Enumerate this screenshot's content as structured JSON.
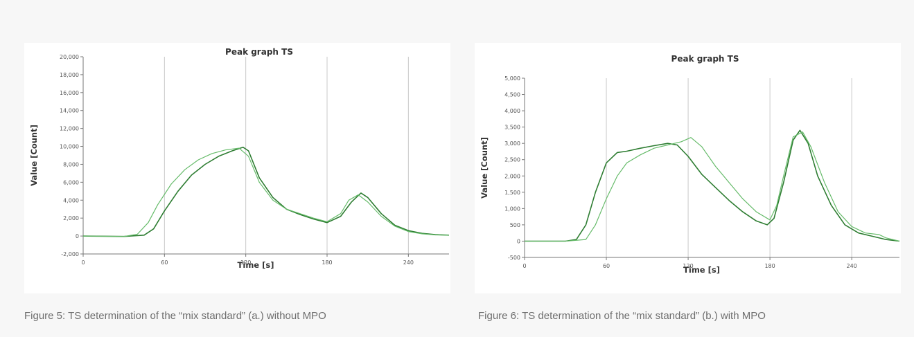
{
  "captions": [
    "Figure 5: TS determination of the “mix standard” (a.) without MPO",
    "Figure 6: TS determination of the “mix standard” (b.) with MPO"
  ],
  "colors": {
    "series_dark": "#2e7d32",
    "series_light": "#66bb6a",
    "grid": "#c8c8c8"
  },
  "chart_data": [
    {
      "type": "line",
      "title": "Peak graph TS",
      "xlabel": "Time [s]",
      "ylabel": "Value [Count]",
      "xlim": [
        0,
        270
      ],
      "ylim": [
        -2000,
        20000
      ],
      "xticks": [
        0,
        60,
        120,
        180,
        240
      ],
      "xtick_labels": [
        "0",
        "60",
        "120",
        "180",
        "240"
      ],
      "yticks": [
        -2000,
        0,
        2000,
        4000,
        6000,
        8000,
        10000,
        12000,
        14000,
        16000,
        18000,
        20000
      ],
      "ytick_labels": [
        "-2,000",
        "0",
        "2,000",
        "4,000",
        "6,000",
        "8,000",
        "10,000",
        "12,000",
        "14,000",
        "16,000",
        "18,000",
        "20,000"
      ],
      "series": [
        {
          "x": [
            0,
            30,
            45,
            52,
            60,
            70,
            80,
            90,
            100,
            110,
            118,
            122,
            130,
            140,
            150,
            160,
            170,
            180,
            190,
            198,
            205,
            210,
            220,
            230,
            240,
            250,
            260,
            270
          ],
          "values": [
            0,
            -50,
            100,
            800,
            2800,
            5000,
            6800,
            8000,
            8900,
            9500,
            9900,
            9500,
            6500,
            4300,
            3000,
            2400,
            1900,
            1500,
            2200,
            3800,
            4800,
            4300,
            2500,
            1200,
            600,
            300,
            150,
            100
          ]
        },
        {
          "x": [
            0,
            30,
            40,
            48,
            55,
            65,
            75,
            85,
            95,
            105,
            115,
            122,
            130,
            140,
            150,
            160,
            170,
            180,
            190,
            196,
            203,
            210,
            220,
            230,
            240,
            250,
            260,
            270
          ],
          "values": [
            0,
            -50,
            200,
            1500,
            3500,
            5800,
            7400,
            8500,
            9200,
            9600,
            9800,
            8900,
            6000,
            4000,
            3000,
            2500,
            2000,
            1600,
            2500,
            4000,
            4600,
            3800,
            2200,
            1100,
            500,
            250,
            120,
            100
          ]
        }
      ]
    },
    {
      "type": "line",
      "title": "Peak graph TS",
      "xlabel": "Time [s]",
      "ylabel": "Value [Count]",
      "xlim": [
        0,
        275
      ],
      "ylim": [
        -500,
        5000
      ],
      "xticks": [
        0,
        60,
        120,
        180,
        240
      ],
      "xtick_labels": [
        "0",
        "60",
        "120",
        "180",
        "240"
      ],
      "yticks": [
        -500,
        0,
        500,
        1000,
        1500,
        2000,
        2500,
        3000,
        3500,
        4000,
        4500,
        5000
      ],
      "ytick_labels": [
        "-500",
        "0",
        "500",
        "1,000",
        "1,500",
        "2,000",
        "2,500",
        "3,000",
        "3,500",
        "4,000",
        "4,500",
        "5,000"
      ],
      "series": [
        {
          "x": [
            0,
            30,
            38,
            45,
            52,
            60,
            68,
            75,
            85,
            95,
            105,
            112,
            120,
            130,
            140,
            150,
            160,
            170,
            178,
            183,
            190,
            197,
            202,
            208,
            215,
            225,
            235,
            245,
            255,
            265,
            275
          ],
          "values": [
            0,
            0,
            50,
            500,
            1500,
            2400,
            2720,
            2760,
            2850,
            2930,
            3000,
            2950,
            2600,
            2050,
            1650,
            1250,
            900,
            620,
            500,
            700,
            1800,
            3100,
            3400,
            3000,
            2000,
            1100,
            500,
            250,
            150,
            50,
            0
          ]
        },
        {
          "x": [
            0,
            30,
            45,
            52,
            60,
            68,
            75,
            85,
            95,
            105,
            115,
            122,
            130,
            140,
            150,
            160,
            170,
            180,
            185,
            190,
            197,
            204,
            210,
            220,
            230,
            240,
            250,
            260,
            265,
            275
          ],
          "values": [
            0,
            0,
            50,
            500,
            1300,
            2000,
            2400,
            2650,
            2850,
            2950,
            3050,
            3180,
            2900,
            2300,
            1800,
            1300,
            900,
            650,
            1100,
            2000,
            3200,
            3350,
            2900,
            1800,
            900,
            450,
            250,
            200,
            100,
            0
          ]
        }
      ]
    }
  ]
}
